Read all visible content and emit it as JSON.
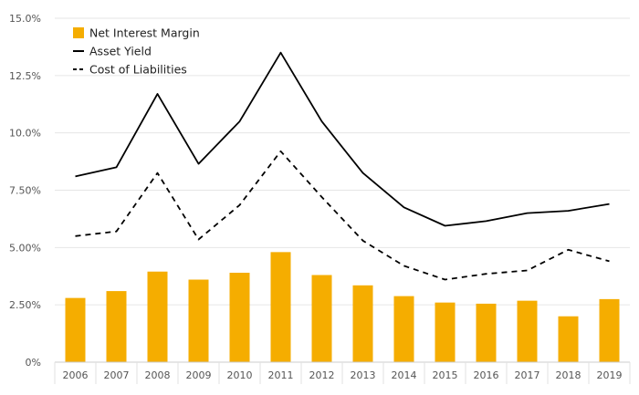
{
  "chart_data": {
    "type": "bar",
    "title": "",
    "xlabel": "",
    "ylabel": "",
    "categories": [
      "2006",
      "2007",
      "2008",
      "2009",
      "2010",
      "2011",
      "2012",
      "2013",
      "2014",
      "2015",
      "2016",
      "2017",
      "2018",
      "2019"
    ],
    "ylim": [
      0,
      15
    ],
    "yticks": [
      0,
      2.5,
      5,
      7.5,
      10,
      12.5,
      15
    ],
    "ytick_labels": [
      "0%",
      "2.50%",
      "5.00%",
      "7.50%",
      "10.0%",
      "12.5%",
      "15.0%"
    ],
    "grid": true,
    "legend_position": "top-left",
    "series": [
      {
        "name": "Net Interest Margin",
        "kind": "bar",
        "color": "#F5AD00",
        "values": [
          2.8,
          3.1,
          3.95,
          3.6,
          3.9,
          4.8,
          3.8,
          3.35,
          2.88,
          2.6,
          2.55,
          2.68,
          2.0,
          2.75
        ]
      },
      {
        "name": "Asset Yield",
        "kind": "line",
        "style": "solid",
        "color": "#000000",
        "values": [
          8.1,
          8.5,
          11.7,
          8.65,
          10.5,
          13.5,
          10.5,
          8.25,
          6.75,
          5.95,
          6.15,
          6.5,
          6.6,
          6.9
        ]
      },
      {
        "name": "Cost of Liabilities",
        "kind": "line",
        "style": "dashed",
        "color": "#000000",
        "values": [
          5.5,
          5.7,
          8.25,
          5.35,
          6.85,
          9.2,
          7.2,
          5.3,
          4.2,
          3.6,
          3.85,
          4.0,
          4.9,
          4.4
        ]
      }
    ]
  }
}
